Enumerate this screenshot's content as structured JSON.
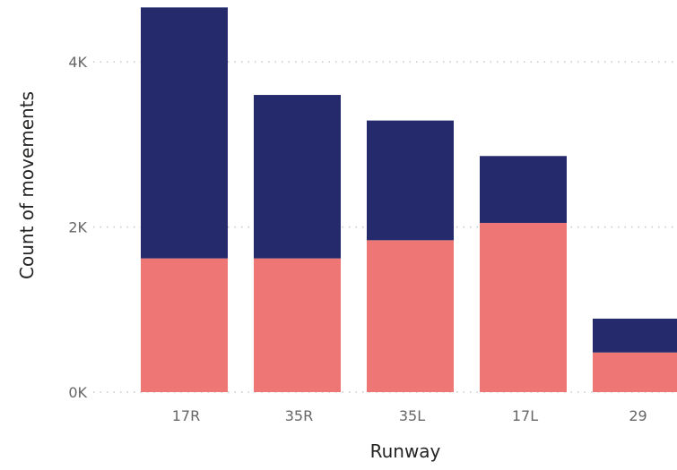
{
  "chart_data": {
    "type": "bar",
    "stacked": true,
    "xlabel": "Runway",
    "ylabel": "Count of movements",
    "categories": [
      "17R",
      "35R",
      "35L",
      "17L",
      "29"
    ],
    "series": [
      {
        "values": [
          1620,
          1620,
          1840,
          2050,
          480
        ],
        "color": "#ee7674"
      },
      {
        "values": [
          3040,
          1980,
          1450,
          810,
          410
        ],
        "color": "#252a6c"
      }
    ],
    "ylim": [
      0,
      4750
    ],
    "y_ticks": [
      {
        "value": 0,
        "label": "0K"
      },
      {
        "value": 2000,
        "label": "2K"
      },
      {
        "value": 4000,
        "label": "4K"
      }
    ],
    "grid": true,
    "legend": "none"
  }
}
